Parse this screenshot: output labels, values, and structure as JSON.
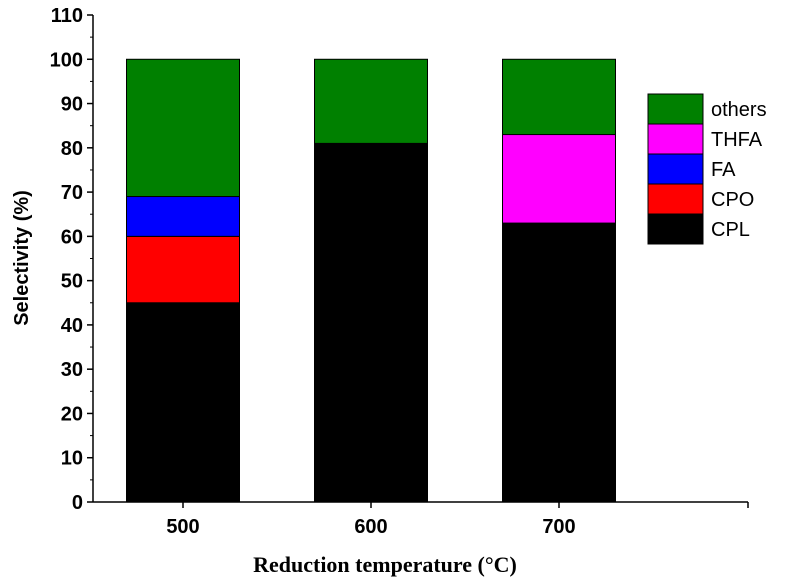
{
  "chart_data": {
    "type": "bar",
    "stacked": true,
    "title": "",
    "xlabel": "Reduction temperature (°C)",
    "ylabel": "Selectivity (%)",
    "categories": [
      "500",
      "600",
      "700"
    ],
    "ylim": [
      0,
      110
    ],
    "yticks": [
      0,
      10,
      20,
      30,
      40,
      50,
      60,
      70,
      80,
      90,
      100,
      110
    ],
    "grid": false,
    "legend_position": "right",
    "legend_order": [
      "others",
      "THFA",
      "FA",
      "CPO",
      "CPL"
    ],
    "series": [
      {
        "name": "CPL",
        "color": "#000000",
        "values": [
          45,
          81,
          63
        ]
      },
      {
        "name": "CPO",
        "color": "#ff0000",
        "values": [
          15,
          0,
          0
        ]
      },
      {
        "name": "FA",
        "color": "#0000ff",
        "values": [
          9,
          0,
          0
        ]
      },
      {
        "name": "THFA",
        "color": "#ff00ff",
        "values": [
          0,
          0,
          20
        ]
      },
      {
        "name": "others",
        "color": "#008000",
        "values": [
          31,
          19,
          17
        ]
      }
    ]
  }
}
